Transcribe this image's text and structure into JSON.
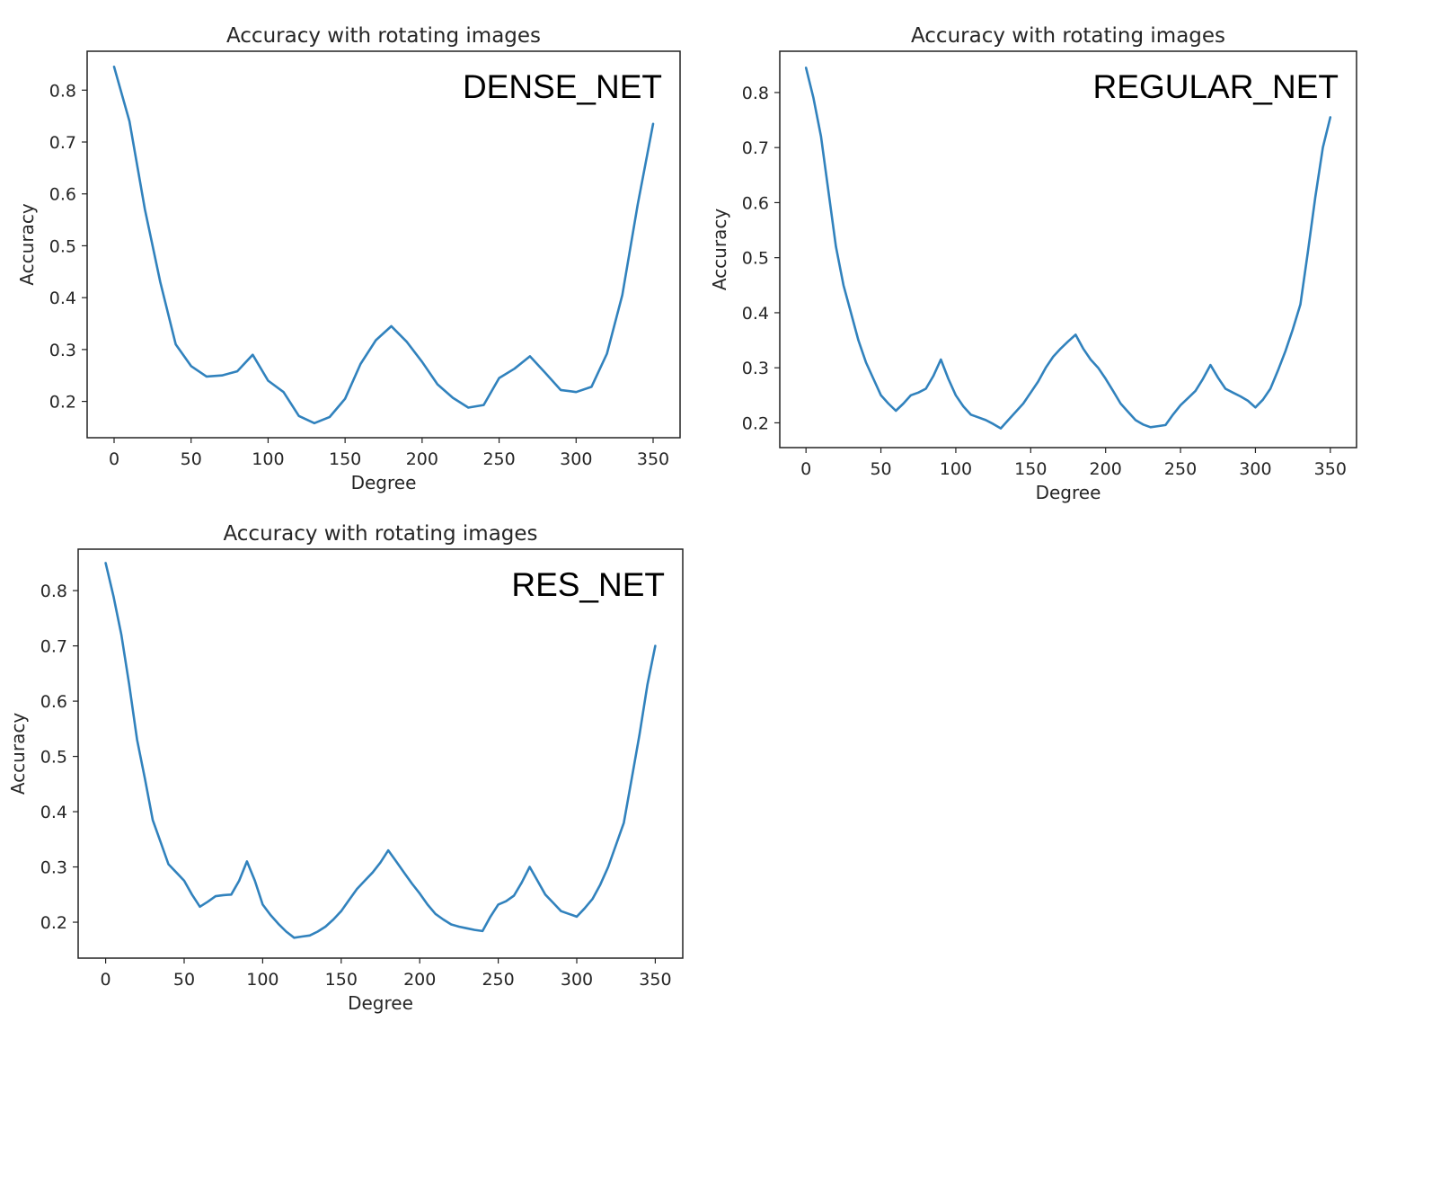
{
  "chart_data": [
    {
      "type": "line",
      "title": "Accuracy with rotating images",
      "annotation": "DENSE_NET",
      "xlabel": "Degree",
      "ylabel": "Accuracy",
      "xlim": [
        -17.5,
        367.5
      ],
      "ylim": [
        0.13,
        0.875
      ],
      "xticks": [
        0,
        50,
        100,
        150,
        200,
        250,
        300,
        350
      ],
      "xtick_labels": [
        "0",
        "50",
        "100",
        "150",
        "200",
        "250",
        "300",
        "350"
      ],
      "yticks": [
        0.2,
        0.3,
        0.4,
        0.5,
        0.6,
        0.7,
        0.8
      ],
      "ytick_labels": [
        "0.2",
        "0.3",
        "0.4",
        "0.5",
        "0.6",
        "0.7",
        "0.8"
      ],
      "color": "#3182bd",
      "series": [
        {
          "x": [
            0,
            10,
            20,
            30,
            40,
            50,
            60,
            70,
            80,
            90,
            100,
            110,
            120,
            130,
            140,
            150,
            160,
            170,
            180,
            190,
            200,
            210,
            220,
            230,
            240,
            250,
            260,
            270,
            280,
            290,
            300,
            310,
            320,
            330,
            340,
            350
          ],
          "values": [
            0.845,
            0.74,
            0.57,
            0.43,
            0.31,
            0.268,
            0.248,
            0.25,
            0.258,
            0.29,
            0.24,
            0.218,
            0.172,
            0.158,
            0.17,
            0.205,
            0.272,
            0.318,
            0.345,
            0.315,
            0.276,
            0.233,
            0.207,
            0.188,
            0.193,
            0.245,
            0.263,
            0.287,
            0.255,
            0.222,
            0.218,
            0.228,
            0.292,
            0.405,
            0.58,
            0.735
          ]
        }
      ]
    },
    {
      "type": "line",
      "title": "Accuracy with rotating images",
      "annotation": "REGULAR_NET",
      "xlabel": "Degree",
      "ylabel": "Accuracy",
      "xlim": [
        -17.5,
        367.5
      ],
      "ylim": [
        0.155,
        0.875
      ],
      "xticks": [
        0,
        50,
        100,
        150,
        200,
        250,
        300,
        350
      ],
      "xtick_labels": [
        "0",
        "50",
        "100",
        "150",
        "200",
        "250",
        "300",
        "350"
      ],
      "yticks": [
        0.2,
        0.3,
        0.4,
        0.5,
        0.6,
        0.7,
        0.8
      ],
      "ytick_labels": [
        "0.2",
        "0.3",
        "0.4",
        "0.5",
        "0.6",
        "0.7",
        "0.8"
      ],
      "color": "#3182bd",
      "series": [
        {
          "x": [
            0,
            5,
            10,
            15,
            20,
            25,
            30,
            35,
            40,
            45,
            50,
            55,
            60,
            65,
            70,
            75,
            80,
            85,
            90,
            95,
            100,
            105,
            110,
            115,
            120,
            125,
            130,
            135,
            140,
            145,
            150,
            155,
            160,
            165,
            170,
            175,
            180,
            185,
            190,
            195,
            200,
            205,
            210,
            215,
            220,
            225,
            230,
            235,
            240,
            245,
            250,
            255,
            260,
            265,
            270,
            275,
            280,
            285,
            290,
            295,
            300,
            305,
            310,
            315,
            320,
            325,
            330,
            335,
            340,
            345,
            350
          ],
          "values": [
            0.845,
            0.79,
            0.72,
            0.62,
            0.52,
            0.45,
            0.4,
            0.35,
            0.31,
            0.28,
            0.25,
            0.235,
            0.222,
            0.235,
            0.25,
            0.255,
            0.262,
            0.285,
            0.315,
            0.28,
            0.25,
            0.23,
            0.215,
            0.21,
            0.205,
            0.198,
            0.19,
            0.205,
            0.22,
            0.235,
            0.255,
            0.275,
            0.3,
            0.32,
            0.335,
            0.348,
            0.36,
            0.335,
            0.315,
            0.3,
            0.28,
            0.258,
            0.235,
            0.22,
            0.205,
            0.197,
            0.192,
            0.194,
            0.196,
            0.215,
            0.232,
            0.245,
            0.258,
            0.28,
            0.305,
            0.282,
            0.262,
            0.255,
            0.248,
            0.24,
            0.228,
            0.242,
            0.262,
            0.295,
            0.33,
            0.37,
            0.415,
            0.51,
            0.61,
            0.7,
            0.755
          ]
        }
      ]
    },
    {
      "type": "line",
      "title": "Accuracy with rotating images",
      "annotation": "RES_NET",
      "xlabel": "Degree",
      "ylabel": "Accuracy",
      "xlim": [
        -17.5,
        367.5
      ],
      "ylim": [
        0.135,
        0.875
      ],
      "xticks": [
        0,
        50,
        100,
        150,
        200,
        250,
        300,
        350
      ],
      "xtick_labels": [
        "0",
        "50",
        "100",
        "150",
        "200",
        "250",
        "300",
        "350"
      ],
      "yticks": [
        0.2,
        0.3,
        0.4,
        0.5,
        0.6,
        0.7,
        0.8
      ],
      "ytick_labels": [
        "0.2",
        "0.3",
        "0.4",
        "0.5",
        "0.6",
        "0.7",
        "0.8"
      ],
      "color": "#3182bd",
      "series": [
        {
          "x": [
            0,
            5,
            10,
            15,
            20,
            25,
            30,
            35,
            40,
            45,
            50,
            55,
            60,
            65,
            70,
            75,
            80,
            85,
            90,
            95,
            100,
            105,
            110,
            115,
            120,
            125,
            130,
            135,
            140,
            145,
            150,
            155,
            160,
            165,
            170,
            175,
            180,
            185,
            190,
            195,
            200,
            205,
            210,
            215,
            220,
            225,
            230,
            235,
            240,
            245,
            250,
            255,
            260,
            265,
            270,
            275,
            280,
            285,
            290,
            295,
            300,
            305,
            310,
            315,
            320,
            325,
            330,
            335,
            340,
            345,
            350
          ],
          "values": [
            0.85,
            0.79,
            0.72,
            0.63,
            0.53,
            0.46,
            0.385,
            0.345,
            0.305,
            0.29,
            0.275,
            0.25,
            0.228,
            0.237,
            0.247,
            0.249,
            0.25,
            0.275,
            0.31,
            0.275,
            0.232,
            0.213,
            0.197,
            0.183,
            0.172,
            0.174,
            0.176,
            0.183,
            0.192,
            0.205,
            0.22,
            0.24,
            0.26,
            0.275,
            0.29,
            0.308,
            0.33,
            0.31,
            0.29,
            0.27,
            0.252,
            0.232,
            0.215,
            0.205,
            0.196,
            0.192,
            0.189,
            0.186,
            0.184,
            0.21,
            0.232,
            0.238,
            0.248,
            0.272,
            0.3,
            0.275,
            0.25,
            0.235,
            0.22,
            0.215,
            0.21,
            0.225,
            0.242,
            0.268,
            0.3,
            0.34,
            0.38,
            0.46,
            0.54,
            0.63,
            0.7
          ]
        }
      ]
    }
  ]
}
